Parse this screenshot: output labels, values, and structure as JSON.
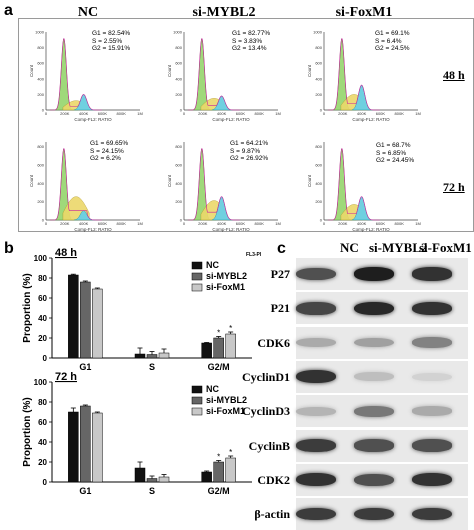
{
  "panel_a": {
    "letter": "a",
    "columns": [
      "NC",
      "si-MYBL2",
      "si-FoxM1"
    ],
    "times": [
      "48 h",
      "72 h"
    ],
    "axis": {
      "x_title": "Comp-FL2: RATIO",
      "y_title": "Count",
      "x_ticks": [
        "0",
        "200K",
        "400K",
        "600K",
        "800K",
        "1M"
      ],
      "y_ticks_top": [
        "0",
        "200",
        "400",
        "600",
        "800",
        "1000"
      ],
      "y_ticks_bottom": [
        "0",
        "200",
        "400",
        "600",
        "800"
      ]
    },
    "stats": [
      {
        "g1": "G1 = 82.54%",
        "s": "S = 2.55%",
        "g2": "G2 = 15.91%"
      },
      {
        "g1": "G1 = 82.77%",
        "s": "S = 3.83%",
        "g2": "G2 = 13.4%"
      },
      {
        "g1": "G1 = 69.1%",
        "s": "S = 6.4%",
        "g2": "G2 = 24.5%"
      },
      {
        "g1": "G1 = 69.65%",
        "s": "S = 24.15%",
        "g2": "G2 = 6.2%"
      },
      {
        "g1": "G1 = 64.21%",
        "s": "S = 9.87%",
        "g2": "G2 = 26.92%"
      },
      {
        "g1": "G1 = 68.7%",
        "s": "S = 6.85%",
        "g2": "G2 = 24.45%"
      }
    ]
  },
  "panel_b": {
    "letter": "b",
    "fl_label": "FL3-PI",
    "ylabel": "Proportion (%)",
    "chart_data": [
      {
        "type": "bar",
        "title": "48 h",
        "categories": [
          "G1",
          "S",
          "G2/M"
        ],
        "series": [
          {
            "name": "NC",
            "values": [
              83,
              4,
              15
            ],
            "errors": [
              0.8,
              6,
              0.5
            ],
            "color": "#111111"
          },
          {
            "name": "si-MYBL2",
            "values": [
              76,
              3.5,
              20
            ],
            "errors": [
              1,
              3,
              1.5
            ],
            "color": "#666666"
          },
          {
            "name": "si-FoxM1",
            "values": [
              69,
              5,
              24
            ],
            "errors": [
              1,
              4,
              2
            ],
            "color": "#c8c8c8"
          }
        ],
        "ylim": [
          0,
          100
        ],
        "yticks": [
          "0",
          "20",
          "40",
          "60",
          "80",
          "100"
        ],
        "star": "*"
      },
      {
        "type": "bar",
        "title": "72 h",
        "categories": [
          "G1",
          "S",
          "G2/M"
        ],
        "series": [
          {
            "name": "NC",
            "values": [
              70,
              14,
              10
            ],
            "errors": [
              4,
              6,
              1
            ],
            "color": "#111111"
          },
          {
            "name": "si-MYBL2",
            "values": [
              76,
              3.5,
              20
            ],
            "errors": [
              1,
              2.5,
              1.5
            ],
            "color": "#666666"
          },
          {
            "name": "si-FoxM1",
            "values": [
              69,
              5,
              24
            ],
            "errors": [
              1,
              2.5,
              2
            ],
            "color": "#c8c8c8"
          }
        ],
        "ylim": [
          0,
          100
        ],
        "yticks": [
          "0",
          "20",
          "40",
          "60",
          "80",
          "100"
        ],
        "star": "*"
      }
    ]
  },
  "panel_c": {
    "letter": "c",
    "columns": [
      "NC",
      "si-MYBL2",
      "si-FoxM1"
    ],
    "proteins": [
      "P27",
      "P21",
      "CDK6",
      "CyclinD1",
      "CyclinD3",
      "CyclinB",
      "CDK2",
      "β-actin"
    ],
    "band_intensity": [
      [
        0.7,
        0.95,
        0.85
      ],
      [
        0.75,
        0.9,
        0.85
      ],
      [
        0.25,
        0.3,
        0.45
      ],
      [
        0.85,
        0.15,
        0.05
      ],
      [
        0.2,
        0.5,
        0.25
      ],
      [
        0.8,
        0.7,
        0.7
      ],
      [
        0.85,
        0.7,
        0.85
      ],
      [
        0.8,
        0.8,
        0.8
      ]
    ]
  }
}
